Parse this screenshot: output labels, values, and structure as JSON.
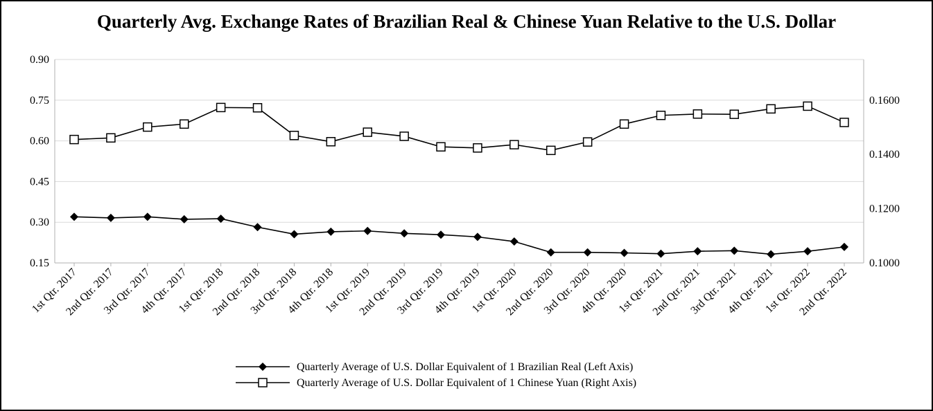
{
  "chart_data": {
    "type": "line",
    "title": "Quarterly Avg. Exchange Rates of Brazilian Real & Chinese Yuan Relative to the U.S. Dollar",
    "categories": [
      "1st Qtr. 2017",
      "2nd Qtr. 2017",
      "3rd Qtr. 2017",
      "4th Qtr. 2017",
      "1st Qtr. 2018",
      "2nd Qtr. 2018",
      "3rd Qtr. 2018",
      "4th Qtr. 2018",
      "1st Qtr. 2019",
      "2nd Qtr. 2019",
      "3rd Qtr. 2019",
      "4th Qtr. 2019",
      "1st Qtr. 2020",
      "2nd Qtr. 2020",
      "3rd Qtr. 2020",
      "4th Qtr. 2020",
      "1st Qtr. 2021",
      "2nd Qtr. 2021",
      "3rd Qtr. 2021",
      "4th Qtr. 2021",
      "1st Qtr. 2022",
      "2nd Qtr. 2022"
    ],
    "y_left": {
      "ticks": [
        "0.90",
        "0.75",
        "0.60",
        "0.45",
        "0.30",
        "0.15"
      ],
      "ylim": [
        0.15,
        0.9
      ]
    },
    "y_right": {
      "ticks": [
        "0.1600",
        "0.1400",
        "0.1200",
        "0.1000"
      ],
      "ylim": [
        0.1,
        0.175
      ]
    },
    "grid": true,
    "legend_position": "bottom",
    "series": [
      {
        "name": "Quarterly Average of U.S. Dollar Equivalent of 1 Brazilian Real (Left Axis)",
        "axis": "left",
        "marker": "diamond",
        "values": [
          0.32,
          0.316,
          0.32,
          0.311,
          0.313,
          0.282,
          0.256,
          0.265,
          0.268,
          0.259,
          0.254,
          0.246,
          0.229,
          0.189,
          0.189,
          0.187,
          0.184,
          0.193,
          0.195,
          0.182,
          0.193,
          0.209
        ]
      },
      {
        "name": "Quarterly Average of U.S. Dollar Equivalent of 1 Chinese Yuan (Right Axis)",
        "axis": "right",
        "marker": "square-open",
        "values": [
          0.1455,
          0.1461,
          0.1501,
          0.1512,
          0.1573,
          0.1572,
          0.147,
          0.1447,
          0.1482,
          0.1467,
          0.1428,
          0.1424,
          0.1436,
          0.1415,
          0.1446,
          0.1512,
          0.1544,
          0.1549,
          0.1548,
          0.1568,
          0.1578,
          0.1518
        ]
      }
    ]
  }
}
